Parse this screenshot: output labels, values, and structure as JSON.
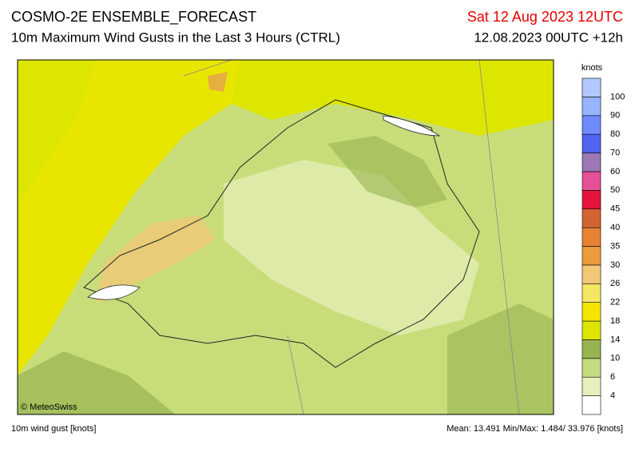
{
  "header": {
    "title": "COSMO-2E ENSEMBLE_FORECAST",
    "subtitle": "10m Maximum Wind Gusts in the Last 3 Hours (CTRL)",
    "valid_time": "Sat 12 Aug 2023 12UTC",
    "run_time": "12.08.2023 00UTC +12h"
  },
  "colorbar": {
    "unit": "knots",
    "levels": [
      4,
      6,
      10,
      14,
      18,
      22,
      26,
      30,
      35,
      40,
      45,
      50,
      60,
      70,
      80,
      90,
      100
    ],
    "colors": [
      "#ffffff",
      "#e6f0be",
      "#c3dc82",
      "#96b450",
      "#dce600",
      "#f5e600",
      "#f5e664",
      "#f0c878",
      "#eb9b3c",
      "#e68232",
      "#d26432",
      "#e6143c",
      "#e65096",
      "#9c78b4",
      "#5064f0",
      "#6e8cff",
      "#96b4ff",
      "#b4c8ff"
    ]
  },
  "copyright": "© MeteoSwiss",
  "footer": {
    "left": "10m wind gust [knots]",
    "right": "Mean: 13.491 Min/Max:  1.484/ 33.976 [knots]"
  }
}
